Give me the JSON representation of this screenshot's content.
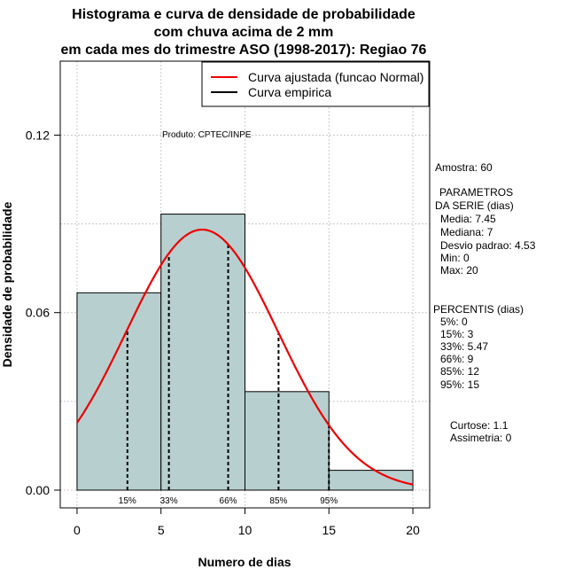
{
  "chart_data": {
    "type": "bar",
    "title_lines": [
      "Histograma e curva de densidade de probabilidade",
      "com chuva acima de 2 mm",
      "em cada mes do trimestre ASO (1998-2017): Regiao 76"
    ],
    "xlabel": "Numero de dias",
    "ylabel": "Densidade de probabilidade",
    "xlim": [
      -1,
      21
    ],
    "ylim": [
      -0.006,
      0.145
    ],
    "x_ticks": [
      0,
      5,
      10,
      15,
      20
    ],
    "x_tick_labels": [
      "0",
      "5",
      "10",
      "15",
      "20"
    ],
    "y_ticks": [
      0.0,
      0.06,
      0.12
    ],
    "y_tick_labels": [
      "0.00",
      "0.06",
      "0.12"
    ],
    "grid": true,
    "bins": [
      {
        "from": 0,
        "to": 5,
        "density": 0.0667
      },
      {
        "from": 5,
        "to": 10,
        "density": 0.0933
      },
      {
        "from": 10,
        "to": 15,
        "density": 0.0333
      },
      {
        "from": 15,
        "to": 20,
        "density": 0.0067
      }
    ],
    "bar_color": "#b8cfcf",
    "normal_curve": {
      "mean": 7.45,
      "sd": 4.53,
      "color": "#ee0000"
    },
    "percentile_lines": [
      {
        "label": "15%",
        "x": 3
      },
      {
        "label": "33%",
        "x": 5.47
      },
      {
        "label": "66%",
        "x": 9
      },
      {
        "label": "85%",
        "x": 12
      },
      {
        "label": "95%",
        "x": 15
      }
    ],
    "legend": {
      "position": "top-right",
      "items": [
        {
          "label": "Curva ajustada (funcao Normal)",
          "color": "#ee0000"
        },
        {
          "label": "Curva empirica",
          "color": "#000000"
        }
      ]
    },
    "credit": "Produto: CPTEC/INPE"
  },
  "stats_panel": {
    "sample": "Amostra: 60",
    "parameters_title": [
      "PARAMETROS",
      "DA SERIE (dias)"
    ],
    "parameters": [
      "Media: 7.45",
      "Mediana: 7",
      "Desvio padrao: 4.53",
      "Min: 0",
      "Max: 20"
    ],
    "percentiles_title": "PERCENTIS (dias)",
    "percentiles": [
      "5%: 0",
      "15%: 3",
      "33%: 5.47",
      "66%: 9",
      "85%: 12",
      "95%: 15"
    ],
    "shape": [
      "Curtose: 1.1",
      "Assimetria: 0"
    ]
  }
}
